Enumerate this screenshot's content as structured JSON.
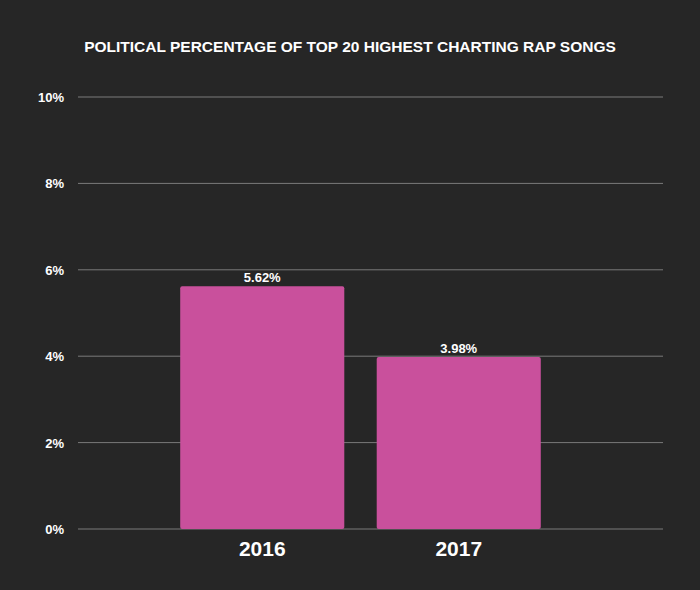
{
  "chart_data": {
    "type": "bar",
    "title": "POLITICAL PERCENTAGE OF TOP 20 HIGHEST CHARTING RAP SONGS",
    "categories": [
      "2016",
      "2017"
    ],
    "values": [
      5.62,
      3.98
    ],
    "value_labels": [
      "5.62%",
      "3.98%"
    ],
    "color": "#c9509c",
    "ylim": [
      0,
      10
    ],
    "yticks": [
      {
        "value": 0,
        "label": "0%"
      },
      {
        "value": 2,
        "label": "2%"
      },
      {
        "value": 4,
        "label": "4%"
      },
      {
        "value": 6,
        "label": "6%"
      },
      {
        "value": 8,
        "label": "8%"
      },
      {
        "value": 10,
        "label": "10%"
      }
    ],
    "grid": true,
    "data_labels": true
  }
}
